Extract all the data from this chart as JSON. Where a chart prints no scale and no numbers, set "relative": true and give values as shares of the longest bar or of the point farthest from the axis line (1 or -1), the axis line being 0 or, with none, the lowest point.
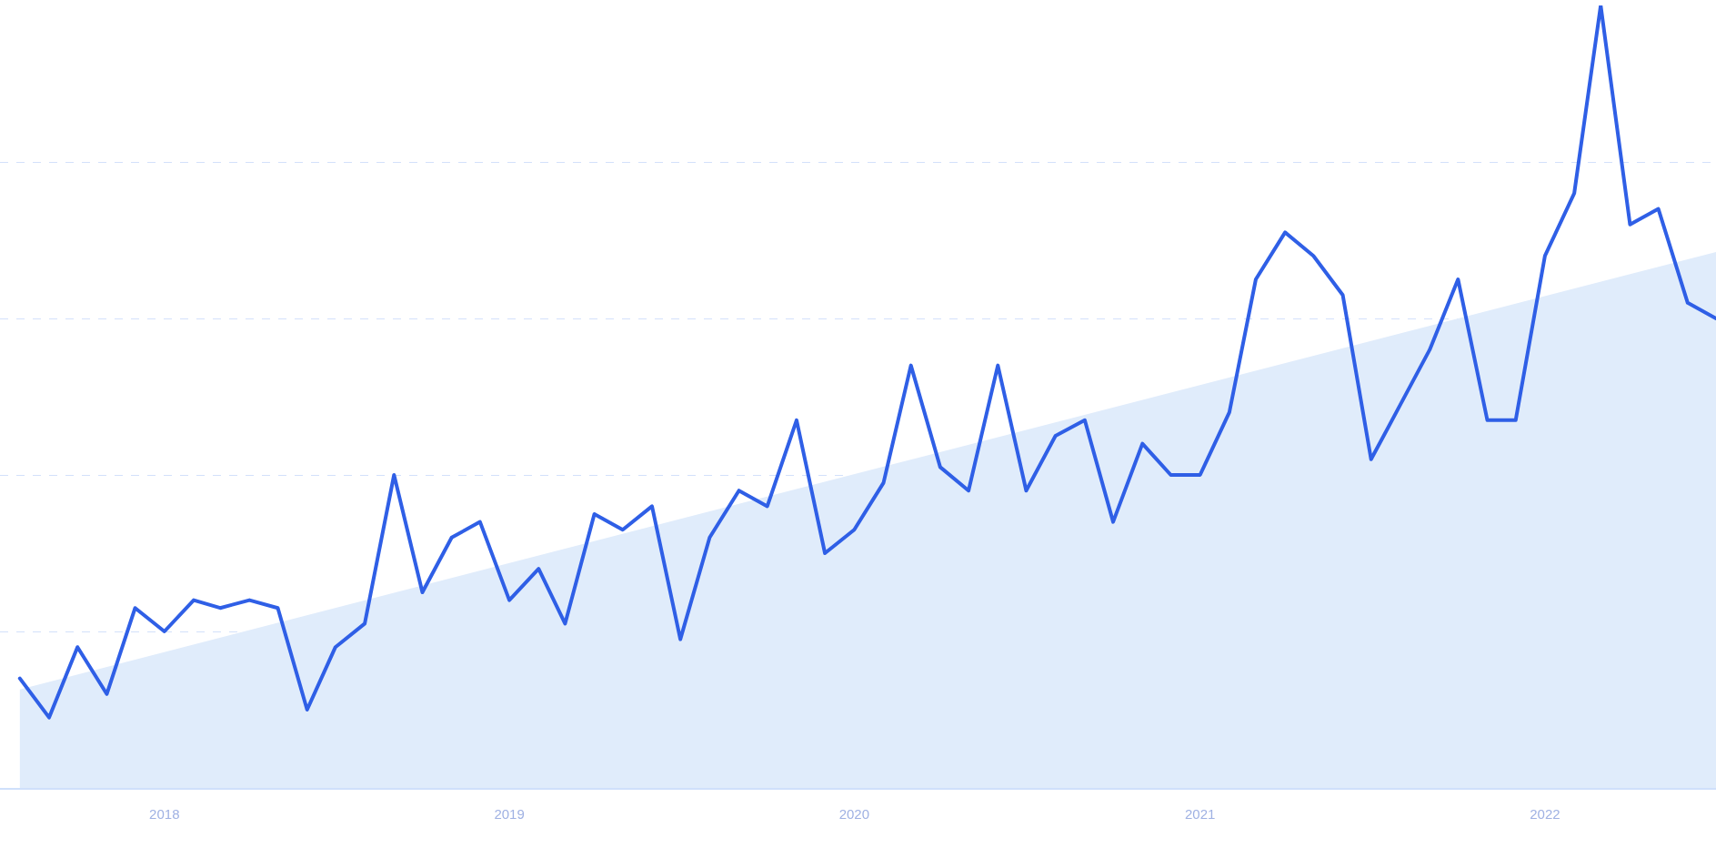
{
  "chart_data": {
    "type": "line",
    "relative": true,
    "grid": "y",
    "marker": "none",
    "line_style": "solid",
    "x": [
      "2017-08",
      "2017-09",
      "2017-10",
      "2017-11",
      "2017-12",
      "2018-01",
      "2018-02",
      "2018-03",
      "2018-04",
      "2018-05",
      "2018-06",
      "2018-07",
      "2018-08",
      "2018-09",
      "2018-10",
      "2018-11",
      "2018-12",
      "2019-01",
      "2019-02",
      "2019-03",
      "2019-04",
      "2019-05",
      "2019-06",
      "2019-07",
      "2019-08",
      "2019-09",
      "2019-10",
      "2019-11",
      "2019-12",
      "2020-01",
      "2020-02",
      "2020-03",
      "2020-04",
      "2020-05",
      "2020-06",
      "2020-07",
      "2020-08",
      "2020-09",
      "2020-10",
      "2020-11",
      "2020-12",
      "2021-01",
      "2021-02",
      "2021-03",
      "2021-04",
      "2021-05",
      "2021-06",
      "2021-07",
      "2021-08",
      "2021-09",
      "2021-10",
      "2021-11",
      "2021-12",
      "2022-01",
      "2022-02",
      "2022-03",
      "2022-04",
      "2022-05",
      "2022-06",
      "2022-07"
    ],
    "xlim": [
      "2017-07-11",
      "2022-07-01"
    ],
    "xticks": [
      {
        "value": "2018-01-01",
        "label": "2018"
      },
      {
        "value": "2019-01-01",
        "label": "2019"
      },
      {
        "value": "2020-01-01",
        "label": "2020"
      },
      {
        "value": "2021-01-01",
        "label": "2021"
      },
      {
        "value": "2022-01-01",
        "label": "2022"
      }
    ],
    "series": [
      {
        "type": "area",
        "color": "#e0ecfb",
        "x": [
          "2017-08",
          "2022-07"
        ],
        "values": [
          0.126,
          0.685
        ]
      },
      {
        "color": "#2f5fe6",
        "values": [
          0.14,
          0.09,
          0.18,
          0.12,
          0.23,
          0.2,
          0.24,
          0.23,
          0.24,
          0.23,
          0.1,
          0.18,
          0.21,
          0.4,
          0.25,
          0.32,
          0.34,
          0.24,
          0.28,
          0.21,
          0.35,
          0.33,
          0.36,
          0.19,
          0.32,
          0.38,
          0.36,
          0.47,
          0.3,
          0.33,
          0.39,
          0.54,
          0.41,
          0.38,
          0.54,
          0.38,
          0.45,
          0.47,
          0.34,
          0.44,
          0.4,
          0.4,
          0.48,
          0.65,
          0.71,
          0.68,
          0.63,
          0.42,
          0.49,
          0.56,
          0.65,
          0.47,
          0.47,
          0.68,
          0.76,
          1.0,
          0.72,
          0.74,
          0.62,
          0.6
        ]
      }
    ]
  }
}
